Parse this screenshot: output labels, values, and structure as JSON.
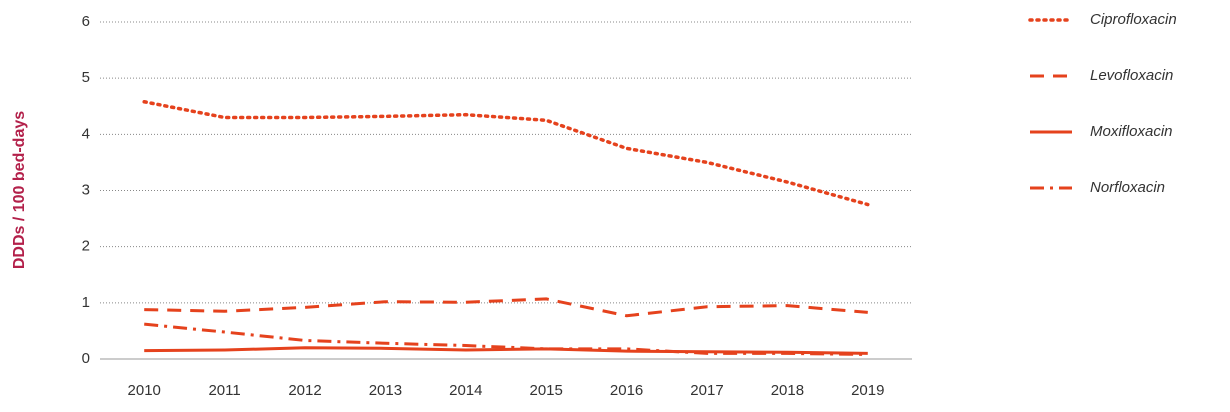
{
  "chart_data": {
    "type": "line",
    "ylabel": "DDDs / 100 bed-days",
    "x": [
      2010,
      2011,
      2012,
      2013,
      2014,
      2015,
      2016,
      2017,
      2018,
      2019
    ],
    "xlim": [
      2009.45,
      2019.55
    ],
    "series": [
      {
        "name": "Ciprofloxacin",
        "color": "#e5421d",
        "style": "dotted",
        "values": [
          4.58,
          4.3,
          4.3,
          4.32,
          4.35,
          4.25,
          3.75,
          3.5,
          3.15,
          2.75
        ]
      },
      {
        "name": "Levofloxacin",
        "color": "#e5421d",
        "style": "dashed",
        "values": [
          0.88,
          0.85,
          0.92,
          1.02,
          1.01,
          1.07,
          0.77,
          0.93,
          0.95,
          0.83
        ]
      },
      {
        "name": "Moxifloxacin",
        "color": "#e5421d",
        "style": "solid",
        "values": [
          0.15,
          0.16,
          0.2,
          0.19,
          0.16,
          0.18,
          0.14,
          0.13,
          0.12,
          0.1
        ]
      },
      {
        "name": "Norfloxacin",
        "color": "#e5421d",
        "style": "dashdot",
        "values": [
          0.62,
          0.48,
          0.33,
          0.28,
          0.24,
          0.18,
          0.18,
          0.1,
          0.1,
          0.08
        ]
      }
    ],
    "ylim": [
      0,
      6
    ],
    "yticks": [
      0,
      1,
      2,
      3,
      4,
      5,
      6
    ],
    "grid": true,
    "legend": "right"
  }
}
